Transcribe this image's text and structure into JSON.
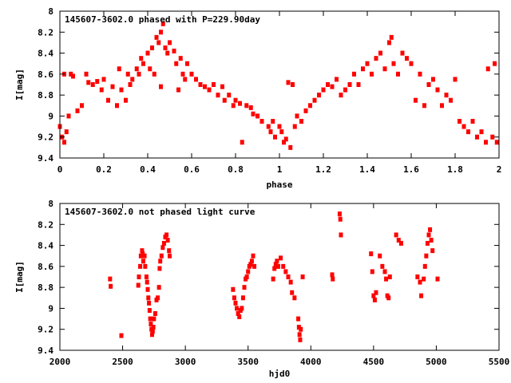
{
  "chart_data": [
    {
      "type": "scatter",
      "title": "145607-3602.0 phased with P=229.90day",
      "xlabel": "phase",
      "ylabel": "I[mag]",
      "xlim": [
        0,
        2
      ],
      "ylim": [
        8,
        9.4
      ],
      "y_inverted": true,
      "xticks": [
        0,
        0.2,
        0.4,
        0.6,
        0.8,
        1,
        1.2,
        1.4,
        1.6,
        1.8,
        2
      ],
      "xtick_labels": [
        "0",
        "0.2",
        "0.4",
        "0.6",
        "0.8",
        "1",
        "1.2",
        "1.4",
        "1.6",
        "1.8",
        "2"
      ],
      "yticks": [
        8,
        8.2,
        8.4,
        8.6,
        8.8,
        9,
        9.2,
        9.4
      ],
      "ytick_labels": [
        "8",
        "8.2",
        "8.4",
        "8.6",
        "8.8",
        "9",
        "9.2",
        "9.4"
      ],
      "color": "#ff0000",
      "points": [
        [
          0.0,
          9.1
        ],
        [
          0.01,
          9.2
        ],
        [
          0.02,
          9.25
        ],
        [
          0.02,
          8.6
        ],
        [
          0.03,
          9.15
        ],
        [
          0.04,
          9.0
        ],
        [
          0.05,
          8.6
        ],
        [
          0.06,
          8.62
        ],
        [
          0.08,
          8.95
        ],
        [
          0.1,
          8.9
        ],
        [
          0.12,
          8.6
        ],
        [
          0.13,
          8.68
        ],
        [
          0.15,
          8.7
        ],
        [
          0.17,
          8.67
        ],
        [
          0.19,
          8.75
        ],
        [
          0.2,
          8.65
        ],
        [
          0.22,
          8.85
        ],
        [
          0.24,
          8.72
        ],
        [
          0.26,
          8.9
        ],
        [
          0.27,
          8.55
        ],
        [
          0.28,
          8.75
        ],
        [
          0.3,
          8.85
        ],
        [
          0.31,
          8.6
        ],
        [
          0.32,
          8.7
        ],
        [
          0.33,
          8.65
        ],
        [
          0.35,
          8.55
        ],
        [
          0.36,
          8.6
        ],
        [
          0.37,
          8.45
        ],
        [
          0.38,
          8.5
        ],
        [
          0.4,
          8.4
        ],
        [
          0.41,
          8.55
        ],
        [
          0.42,
          8.35
        ],
        [
          0.43,
          8.6
        ],
        [
          0.44,
          8.25
        ],
        [
          0.45,
          8.3
        ],
        [
          0.46,
          8.2
        ],
        [
          0.46,
          8.72
        ],
        [
          0.47,
          8.12
        ],
        [
          0.48,
          8.35
        ],
        [
          0.49,
          8.4
        ],
        [
          0.5,
          8.3
        ],
        [
          0.52,
          8.38
        ],
        [
          0.53,
          8.5
        ],
        [
          0.54,
          8.75
        ],
        [
          0.55,
          8.45
        ],
        [
          0.56,
          8.6
        ],
        [
          0.57,
          8.65
        ],
        [
          0.58,
          8.5
        ],
        [
          0.6,
          8.6
        ],
        [
          0.62,
          8.65
        ],
        [
          0.64,
          8.7
        ],
        [
          0.66,
          8.72
        ],
        [
          0.68,
          8.75
        ],
        [
          0.7,
          8.7
        ],
        [
          0.72,
          8.8
        ],
        [
          0.74,
          8.72
        ],
        [
          0.75,
          8.85
        ],
        [
          0.77,
          8.8
        ],
        [
          0.79,
          8.9
        ],
        [
          0.8,
          8.85
        ],
        [
          0.82,
          8.88
        ],
        [
          0.83,
          9.25
        ],
        [
          0.85,
          8.9
        ],
        [
          0.87,
          8.92
        ],
        [
          0.88,
          8.98
        ],
        [
          0.9,
          9.0
        ],
        [
          0.92,
          9.05
        ],
        [
          0.95,
          9.1
        ],
        [
          0.96,
          9.15
        ],
        [
          0.97,
          9.05
        ],
        [
          0.98,
          9.2
        ],
        [
          1.0,
          9.1
        ],
        [
          1.01,
          9.15
        ],
        [
          1.02,
          9.25
        ],
        [
          1.03,
          9.22
        ],
        [
          1.04,
          8.68
        ],
        [
          1.05,
          9.3
        ],
        [
          1.06,
          8.7
        ],
        [
          1.07,
          9.1
        ],
        [
          1.08,
          9.0
        ],
        [
          1.1,
          9.05
        ],
        [
          1.12,
          8.95
        ],
        [
          1.14,
          8.9
        ],
        [
          1.16,
          8.85
        ],
        [
          1.18,
          8.8
        ],
        [
          1.2,
          8.75
        ],
        [
          1.22,
          8.7
        ],
        [
          1.24,
          8.72
        ],
        [
          1.26,
          8.65
        ],
        [
          1.28,
          8.8
        ],
        [
          1.3,
          8.75
        ],
        [
          1.32,
          8.7
        ],
        [
          1.34,
          8.6
        ],
        [
          1.36,
          8.7
        ],
        [
          1.38,
          8.55
        ],
        [
          1.4,
          8.5
        ],
        [
          1.42,
          8.6
        ],
        [
          1.44,
          8.45
        ],
        [
          1.46,
          8.4
        ],
        [
          1.48,
          8.55
        ],
        [
          1.5,
          8.3
        ],
        [
          1.51,
          8.25
        ],
        [
          1.52,
          8.5
        ],
        [
          1.54,
          8.6
        ],
        [
          1.56,
          8.4
        ],
        [
          1.58,
          8.45
        ],
        [
          1.6,
          8.5
        ],
        [
          1.62,
          8.85
        ],
        [
          1.64,
          8.6
        ],
        [
          1.66,
          8.9
        ],
        [
          1.68,
          8.7
        ],
        [
          1.7,
          8.65
        ],
        [
          1.72,
          8.75
        ],
        [
          1.74,
          8.9
        ],
        [
          1.76,
          8.8
        ],
        [
          1.78,
          8.85
        ],
        [
          1.8,
          8.65
        ],
        [
          1.82,
          9.05
        ],
        [
          1.84,
          9.1
        ],
        [
          1.86,
          9.15
        ],
        [
          1.88,
          9.05
        ],
        [
          1.9,
          9.2
        ],
        [
          1.92,
          9.15
        ],
        [
          1.94,
          9.25
        ],
        [
          1.95,
          8.55
        ],
        [
          1.97,
          9.2
        ],
        [
          1.98,
          8.5
        ],
        [
          1.99,
          9.25
        ]
      ]
    },
    {
      "type": "scatter",
      "title": "145607-3602.0 not phased light curve",
      "xlabel": "hjd0",
      "ylabel": "I[mag]",
      "xlim": [
        2000,
        5500
      ],
      "ylim": [
        8,
        9.4
      ],
      "y_inverted": true,
      "xticks": [
        2000,
        2500,
        3000,
        3500,
        4000,
        4500,
        5000,
        5500
      ],
      "xtick_labels": [
        "2000",
        "2500",
        "3000",
        "3500",
        "4000",
        "4500",
        "5000",
        "5500"
      ],
      "yticks": [
        8,
        8.2,
        8.4,
        8.6,
        8.8,
        9,
        9.2,
        9.4
      ],
      "ytick_labels": [
        "8",
        "8.2",
        "8.4",
        "8.6",
        "8.8",
        "9",
        "9.2",
        "9.4"
      ],
      "color": "#ff0000",
      "points": [
        [
          2400,
          8.72
        ],
        [
          2405,
          8.79
        ],
        [
          2490,
          9.26
        ],
        [
          2625,
          8.78
        ],
        [
          2630,
          8.7
        ],
        [
          2640,
          8.6
        ],
        [
          2645,
          8.5
        ],
        [
          2655,
          8.45
        ],
        [
          2660,
          8.48
        ],
        [
          2665,
          8.55
        ],
        [
          2675,
          8.5
        ],
        [
          2680,
          8.6
        ],
        [
          2690,
          8.7
        ],
        [
          2695,
          8.75
        ],
        [
          2700,
          8.82
        ],
        [
          2705,
          8.9
        ],
        [
          2710,
          8.95
        ],
        [
          2715,
          9.02
        ],
        [
          2720,
          9.1
        ],
        [
          2725,
          9.15
        ],
        [
          2730,
          9.2
        ],
        [
          2735,
          9.25
        ],
        [
          2740,
          9.22
        ],
        [
          2745,
          9.18
        ],
        [
          2750,
          9.1
        ],
        [
          2760,
          9.05
        ],
        [
          2770,
          8.92
        ],
        [
          2780,
          8.9
        ],
        [
          2790,
          8.8
        ],
        [
          2795,
          8.62
        ],
        [
          2800,
          8.55
        ],
        [
          2810,
          8.5
        ],
        [
          2820,
          8.42
        ],
        [
          2830,
          8.38
        ],
        [
          2840,
          8.32
        ],
        [
          2850,
          8.3
        ],
        [
          2860,
          8.35
        ],
        [
          2870,
          8.45
        ],
        [
          2875,
          8.5
        ],
        [
          3380,
          8.82
        ],
        [
          3390,
          8.9
        ],
        [
          3400,
          8.95
        ],
        [
          3410,
          9.0
        ],
        [
          3420,
          9.05
        ],
        [
          3430,
          9.08
        ],
        [
          3440,
          9.02
        ],
        [
          3450,
          9.0
        ],
        [
          3460,
          8.9
        ],
        [
          3470,
          8.8
        ],
        [
          3480,
          8.72
        ],
        [
          3490,
          8.7
        ],
        [
          3500,
          8.65
        ],
        [
          3510,
          8.6
        ],
        [
          3520,
          8.58
        ],
        [
          3530,
          8.55
        ],
        [
          3540,
          8.5
        ],
        [
          3550,
          8.6
        ],
        [
          3700,
          8.72
        ],
        [
          3710,
          8.62
        ],
        [
          3720,
          8.58
        ],
        [
          3730,
          8.55
        ],
        [
          3740,
          8.6
        ],
        [
          3760,
          8.52
        ],
        [
          3780,
          8.6
        ],
        [
          3800,
          8.65
        ],
        [
          3820,
          8.7
        ],
        [
          3840,
          8.75
        ],
        [
          3850,
          8.85
        ],
        [
          3870,
          8.9
        ],
        [
          3900,
          9.1
        ],
        [
          3905,
          9.18
        ],
        [
          3910,
          9.25
        ],
        [
          3915,
          9.3
        ],
        [
          3920,
          9.2
        ],
        [
          3935,
          8.7
        ],
        [
          4170,
          8.68
        ],
        [
          4175,
          8.72
        ],
        [
          4230,
          8.1
        ],
        [
          4235,
          8.15
        ],
        [
          4240,
          8.3
        ],
        [
          4480,
          8.48
        ],
        [
          4490,
          8.65
        ],
        [
          4500,
          8.88
        ],
        [
          4510,
          8.92
        ],
        [
          4520,
          8.85
        ],
        [
          4550,
          8.5
        ],
        [
          4570,
          8.6
        ],
        [
          4590,
          8.65
        ],
        [
          4600,
          8.72
        ],
        [
          4610,
          8.88
        ],
        [
          4620,
          8.9
        ],
        [
          4630,
          8.7
        ],
        [
          4680,
          8.3
        ],
        [
          4700,
          8.35
        ],
        [
          4720,
          8.38
        ],
        [
          4850,
          8.7
        ],
        [
          4870,
          8.75
        ],
        [
          4880,
          8.88
        ],
        [
          4900,
          8.72
        ],
        [
          4910,
          8.6
        ],
        [
          4920,
          8.5
        ],
        [
          4930,
          8.38
        ],
        [
          4940,
          8.3
        ],
        [
          4950,
          8.25
        ],
        [
          4960,
          8.35
        ],
        [
          4970,
          8.45
        ],
        [
          5010,
          8.72
        ]
      ]
    }
  ]
}
